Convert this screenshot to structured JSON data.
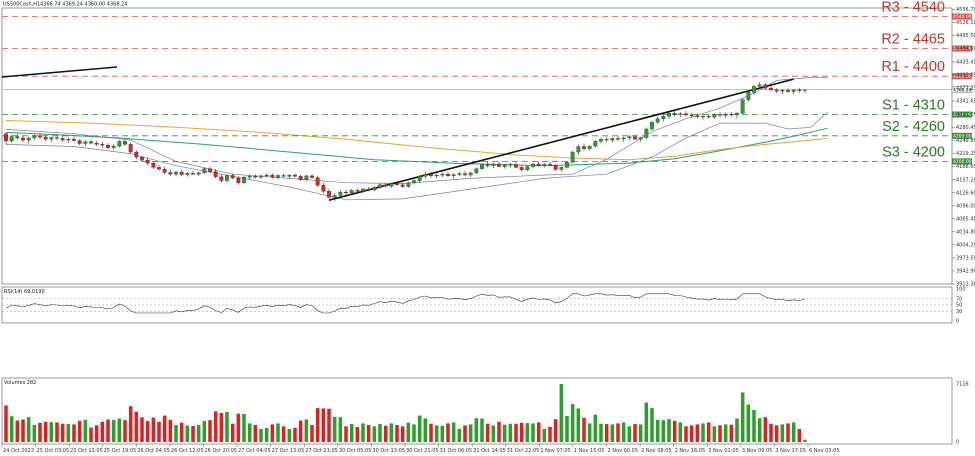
{
  "chart_data": {
    "type": "candlestick",
    "title": "US500Cash,H1",
    "ohlc_header": "4366.74 4369.24 4360.00 4368.24",
    "current_price": 4368.24,
    "y_ticks": [
      "4556.70",
      "4526.10",
      "4495.50",
      "4464.90",
      "4433.45",
      "4402.85",
      "4372.25",
      "4341.65",
      "4311.05",
      "4280.45",
      "4249.85",
      "4219.25",
      "4188.65",
      "4157.20",
      "4126.60",
      "4096.00",
      "4065.40",
      "4034.80",
      "4004.20",
      "3973.55",
      "3942.90",
      "3912.30"
    ],
    "ylim": [
      3912.3,
      4560
    ],
    "x_ticks": [
      "24 Oct 2023",
      "25 Oct 03:05",
      "25 Oct 11:05",
      "25 Oct 19:05",
      "26 Oct 04:05",
      "26 Oct 12:05",
      "26 Oct 20:05",
      "27 Oct 04:05",
      "27 Oct 13:05",
      "27 Oct 21:05",
      "30 Oct 05:05",
      "30 Oct 13:05",
      "30 Oct 21:05",
      "31 Oct 06:05",
      "31 Oct 14:05",
      "31 Oct 22:05",
      "1 Nov 07:05",
      "1 Nov 15:05",
      "2 Nov 00:05",
      "2 Nov 08:05",
      "2 Nov 16:05",
      "3 Nov 01:05",
      "3 Nov 09:05",
      "3 Nov 17:05",
      "6 Nov 03:05"
    ],
    "levels": [
      {
        "label": "R3 - 4540",
        "value": 4540,
        "tag": "4540.00",
        "kind": "resistance"
      },
      {
        "label": "R2 - 4465",
        "value": 4465,
        "tag": "4465.00",
        "kind": "resistance"
      },
      {
        "label": "R1 - 4400",
        "value": 4400,
        "tag": "4400.00",
        "kind": "resistance"
      },
      {
        "label": "S1 - 4310",
        "value": 4310,
        "tag": "4310.00",
        "kind": "support"
      },
      {
        "label": "S2 - 4260",
        "value": 4260,
        "tag": "4260.00",
        "kind": "support"
      },
      {
        "label": "S3 - 4200",
        "value": 4200,
        "tag": "4200.00",
        "kind": "support"
      }
    ],
    "candles": [
      [
        4265,
        4268,
        4240,
        4248
      ],
      [
        4248,
        4262,
        4243,
        4258
      ],
      [
        4258,
        4265,
        4250,
        4255
      ],
      [
        4255,
        4260,
        4245,
        4250
      ],
      [
        4250,
        4258,
        4242,
        4255
      ],
      [
        4255,
        4263,
        4250,
        4260
      ],
      [
        4260,
        4266,
        4252,
        4257
      ],
      [
        4257,
        4262,
        4248,
        4252
      ],
      [
        4252,
        4258,
        4245,
        4256
      ],
      [
        4256,
        4262,
        4250,
        4254
      ],
      [
        4254,
        4260,
        4246,
        4250
      ],
      [
        4250,
        4256,
        4243,
        4252
      ],
      [
        4252,
        4258,
        4246,
        4249
      ],
      [
        4249,
        4252,
        4238,
        4242
      ],
      [
        4242,
        4250,
        4236,
        4246
      ],
      [
        4246,
        4251,
        4240,
        4243
      ],
      [
        4243,
        4248,
        4236,
        4240
      ],
      [
        4240,
        4246,
        4232,
        4238
      ],
      [
        4238,
        4243,
        4228,
        4232
      ],
      [
        4232,
        4240,
        4226,
        4236
      ],
      [
        4236,
        4250,
        4232,
        4247
      ],
      [
        4247,
        4252,
        4236,
        4240
      ],
      [
        4240,
        4244,
        4218,
        4222
      ],
      [
        4222,
        4226,
        4205,
        4210
      ],
      [
        4210,
        4214,
        4198,
        4203
      ],
      [
        4203,
        4208,
        4192,
        4196
      ],
      [
        4196,
        4200,
        4182,
        4186
      ],
      [
        4186,
        4192,
        4178,
        4182
      ],
      [
        4182,
        4188,
        4170,
        4174
      ],
      [
        4174,
        4180,
        4166,
        4170
      ],
      [
        4170,
        4178,
        4165,
        4175
      ],
      [
        4175,
        4180,
        4166,
        4169
      ],
      [
        4169,
        4175,
        4164,
        4172
      ],
      [
        4172,
        4178,
        4168,
        4170
      ],
      [
        4170,
        4176,
        4166,
        4173
      ],
      [
        4173,
        4186,
        4170,
        4183
      ],
      [
        4183,
        4188,
        4172,
        4176
      ],
      [
        4176,
        4182,
        4160,
        4164
      ],
      [
        4164,
        4170,
        4150,
        4155
      ],
      [
        4155,
        4170,
        4150,
        4167
      ],
      [
        4167,
        4172,
        4158,
        4161
      ],
      [
        4161,
        4166,
        4145,
        4150
      ],
      [
        4150,
        4166,
        4146,
        4163
      ],
      [
        4163,
        4170,
        4158,
        4165
      ],
      [
        4165,
        4170,
        4160,
        4163
      ],
      [
        4163,
        4168,
        4158,
        4166
      ],
      [
        4166,
        4172,
        4162,
        4168
      ],
      [
        4168,
        4172,
        4160,
        4163
      ],
      [
        4163,
        4170,
        4158,
        4167
      ],
      [
        4167,
        4172,
        4163,
        4165
      ],
      [
        4165,
        4170,
        4160,
        4168
      ],
      [
        4168,
        4172,
        4162,
        4165
      ],
      [
        4165,
        4169,
        4154,
        4157
      ],
      [
        4157,
        4168,
        4153,
        4166
      ],
      [
        4166,
        4170,
        4160,
        4162
      ],
      [
        4162,
        4166,
        4140,
        4144
      ],
      [
        4144,
        4150,
        4125,
        4130
      ],
      [
        4130,
        4136,
        4112,
        4116
      ],
      [
        4116,
        4125,
        4108,
        4120
      ],
      [
        4120,
        4132,
        4116,
        4128
      ],
      [
        4128,
        4134,
        4122,
        4126
      ],
      [
        4126,
        4135,
        4122,
        4132
      ],
      [
        4132,
        4136,
        4126,
        4130
      ],
      [
        4130,
        4138,
        4126,
        4135
      ],
      [
        4135,
        4140,
        4130,
        4133
      ],
      [
        4133,
        4142,
        4130,
        4139
      ],
      [
        4139,
        4148,
        4135,
        4145
      ],
      [
        4145,
        4150,
        4139,
        4142
      ],
      [
        4142,
        4150,
        4138,
        4148
      ],
      [
        4148,
        4153,
        4143,
        4145
      ],
      [
        4145,
        4150,
        4138,
        4141
      ],
      [
        4141,
        4152,
        4138,
        4150
      ],
      [
        4150,
        4158,
        4146,
        4155
      ],
      [
        4155,
        4168,
        4150,
        4165
      ],
      [
        4165,
        4175,
        4160,
        4170
      ],
      [
        4170,
        4176,
        4162,
        4166
      ],
      [
        4166,
        4172,
        4160,
        4168
      ],
      [
        4168,
        4174,
        4163,
        4170
      ],
      [
        4170,
        4176,
        4164,
        4166
      ],
      [
        4166,
        4172,
        4160,
        4169
      ],
      [
        4169,
        4175,
        4165,
        4171
      ],
      [
        4171,
        4178,
        4166,
        4168
      ],
      [
        4168,
        4175,
        4163,
        4173
      ],
      [
        4173,
        4186,
        4170,
        4183
      ],
      [
        4183,
        4195,
        4180,
        4192
      ],
      [
        4192,
        4200,
        4186,
        4190
      ],
      [
        4190,
        4196,
        4184,
        4194
      ],
      [
        4194,
        4200,
        4186,
        4188
      ],
      [
        4188,
        4194,
        4183,
        4191
      ],
      [
        4191,
        4197,
        4186,
        4193
      ],
      [
        4193,
        4198,
        4184,
        4186
      ],
      [
        4186,
        4190,
        4176,
        4180
      ],
      [
        4180,
        4190,
        4177,
        4188
      ],
      [
        4188,
        4196,
        4184,
        4194
      ],
      [
        4194,
        4200,
        4188,
        4190
      ],
      [
        4190,
        4196,
        4186,
        4193
      ],
      [
        4193,
        4199,
        4188,
        4191
      ],
      [
        4191,
        4194,
        4178,
        4181
      ],
      [
        4181,
        4188,
        4176,
        4186
      ],
      [
        4186,
        4200,
        4183,
        4198
      ],
      [
        4198,
        4225,
        4196,
        4222
      ],
      [
        4222,
        4240,
        4215,
        4235
      ],
      [
        4235,
        4242,
        4225,
        4230
      ],
      [
        4230,
        4238,
        4226,
        4236
      ],
      [
        4236,
        4250,
        4232,
        4247
      ],
      [
        4247,
        4256,
        4242,
        4252
      ],
      [
        4252,
        4258,
        4245,
        4250
      ],
      [
        4250,
        4256,
        4244,
        4254
      ],
      [
        4254,
        4260,
        4248,
        4253
      ],
      [
        4253,
        4258,
        4246,
        4255
      ],
      [
        4255,
        4262,
        4250,
        4258
      ],
      [
        4258,
        4263,
        4250,
        4252
      ],
      [
        4252,
        4258,
        4246,
        4256
      ],
      [
        4256,
        4280,
        4252,
        4276
      ],
      [
        4276,
        4295,
        4272,
        4292
      ],
      [
        4292,
        4305,
        4288,
        4300
      ],
      [
        4300,
        4310,
        4294,
        4306
      ],
      [
        4306,
        4316,
        4300,
        4313
      ],
      [
        4313,
        4320,
        4306,
        4310
      ],
      [
        4310,
        4316,
        4304,
        4312
      ],
      [
        4312,
        4318,
        4306,
        4309
      ],
      [
        4309,
        4314,
        4302,
        4307
      ],
      [
        4307,
        4312,
        4300,
        4305
      ],
      [
        4305,
        4310,
        4298,
        4306
      ],
      [
        4306,
        4312,
        4300,
        4304
      ],
      [
        4304,
        4312,
        4300,
        4310
      ],
      [
        4310,
        4316,
        4304,
        4308
      ],
      [
        4308,
        4314,
        4302,
        4311
      ],
      [
        4311,
        4316,
        4305,
        4309
      ],
      [
        4309,
        4315,
        4300,
        4313
      ],
      [
        4313,
        4348,
        4310,
        4345
      ],
      [
        4345,
        4368,
        4340,
        4362
      ],
      [
        4362,
        4380,
        4357,
        4376
      ],
      [
        4376,
        4386,
        4370,
        4380
      ],
      [
        4380,
        4384,
        4368,
        4372
      ],
      [
        4372,
        4378,
        4364,
        4368
      ],
      [
        4368,
        4372,
        4360,
        4365
      ],
      [
        4365,
        4370,
        4358,
        4367
      ],
      [
        4367,
        4372,
        4360,
        4364
      ],
      [
        4364,
        4370,
        4358,
        4368
      ],
      [
        4368,
        4372,
        4362,
        4366
      ],
      [
        4366.74,
        4369.24,
        4360,
        4368.24
      ]
    ],
    "rsi": {
      "label": "RSI(14) 69.0190",
      "value": 69.019,
      "ticks": [
        "100",
        "70",
        "50",
        "30",
        "0"
      ]
    },
    "volume": {
      "label": "Volumes 282",
      "value": 282,
      "ticks": [
        "7116",
        "0"
      ],
      "ymax": 7116
    }
  }
}
